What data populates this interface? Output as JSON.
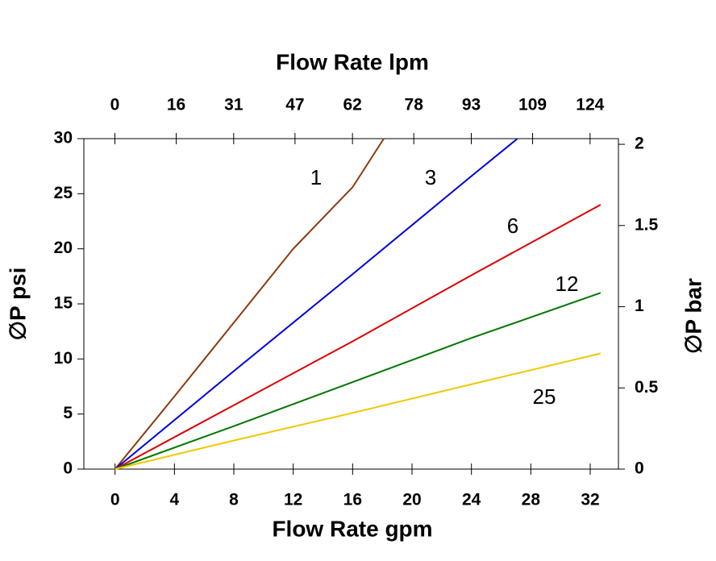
{
  "chart_data": {
    "type": "line",
    "x_title": "Flow Rate gpm",
    "x2_title": "Flow Rate lpm",
    "y_title": "∅P psi",
    "y2_title": "∅P bar",
    "xlim": [
      -2.1,
      33.9
    ],
    "xticks": [
      0,
      4,
      8,
      12,
      16,
      20,
      24,
      28,
      32
    ],
    "x2lim": [
      -8.1,
      131.4
    ],
    "x2ticks": [
      0,
      16,
      31,
      47,
      62,
      78,
      93,
      109,
      124
    ],
    "ylim": [
      0,
      30
    ],
    "yticks": [
      0,
      5,
      10,
      15,
      20,
      25,
      30
    ],
    "y2lim": [
      0,
      2.035
    ],
    "y2ticks": [
      0,
      0.5,
      1,
      1.5,
      2
    ],
    "series": [
      {
        "name": "1",
        "color": "#8b3a0f",
        "x": [
          0,
          4,
          8,
          12,
          16,
          18.1
        ],
        "values": [
          0,
          6.6,
          13.3,
          20,
          25.6,
          30
        ]
      },
      {
        "name": "3",
        "color": "#0000dd",
        "x": [
          0,
          8,
          16,
          24,
          27.1
        ],
        "values": [
          0,
          8.9,
          17.7,
          26.6,
          30
        ]
      },
      {
        "name": "6",
        "color": "#dd0000",
        "x": [
          0,
          8,
          16,
          24,
          32.7
        ],
        "values": [
          0,
          5.8,
          11.6,
          17.6,
          24
        ]
      },
      {
        "name": "12",
        "color": "#007700",
        "x": [
          0,
          8,
          16,
          24,
          32.7
        ],
        "values": [
          0,
          3.9,
          7.9,
          11.9,
          16
        ]
      },
      {
        "name": "25",
        "color": "#f0c800",
        "x": [
          0,
          8,
          16,
          24,
          32.7
        ],
        "values": [
          0,
          2.6,
          5.1,
          7.7,
          10.5
        ]
      }
    ]
  }
}
